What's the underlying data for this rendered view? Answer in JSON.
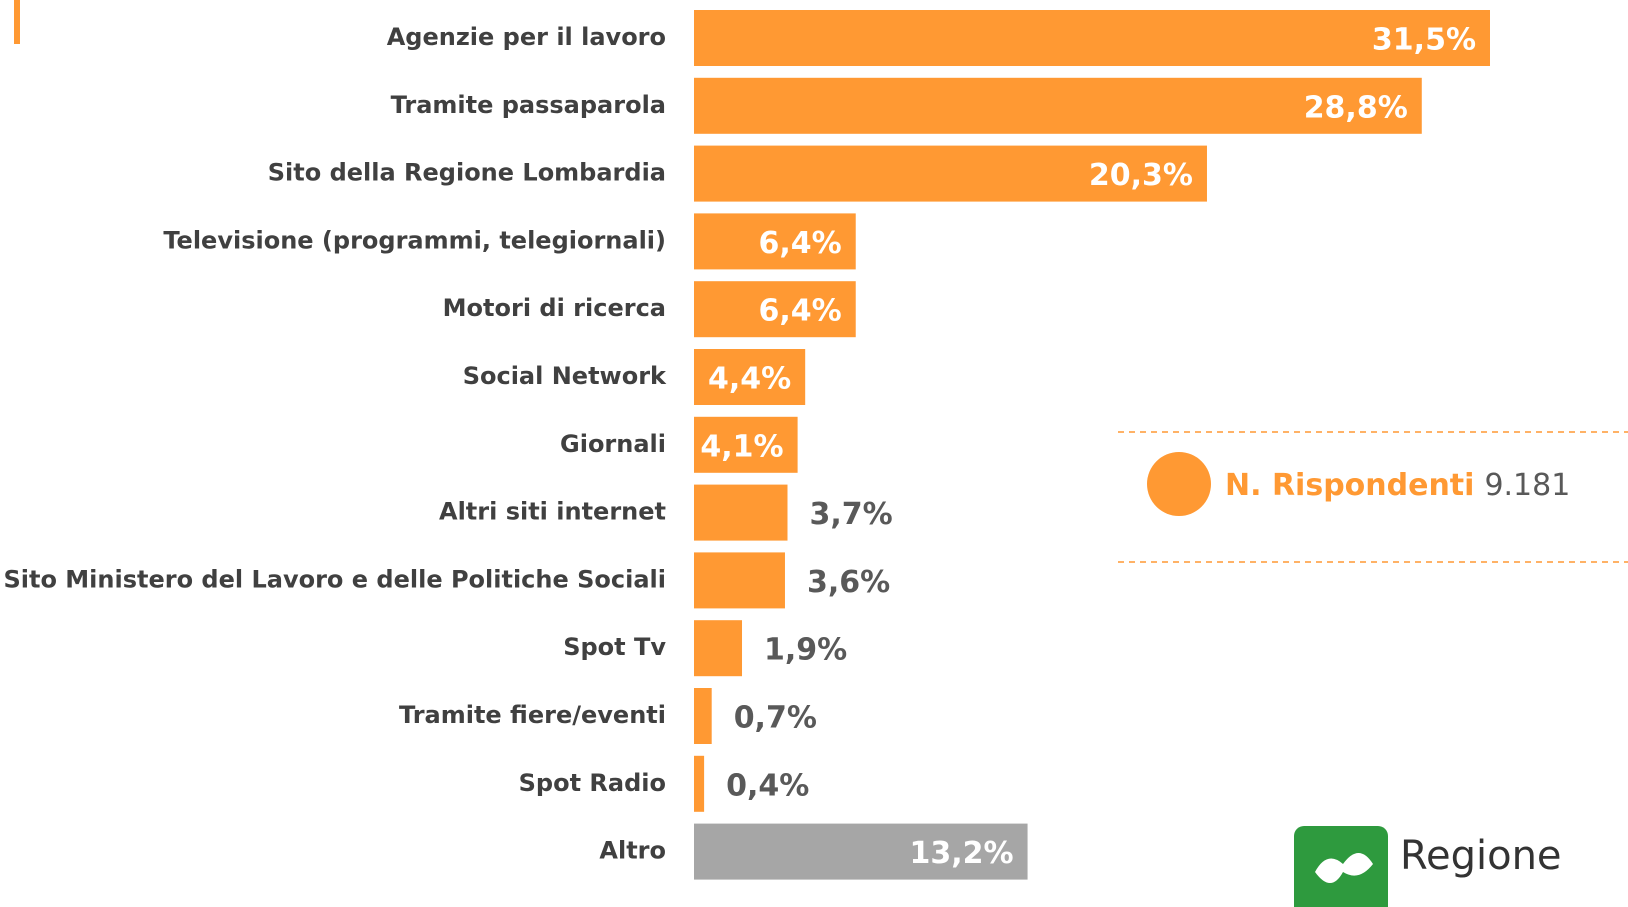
{
  "chart_data": {
    "type": "bar",
    "orientation": "horizontal",
    "categories": [
      "Agenzie per il lavoro",
      "Tramite passaparola",
      "Sito della Regione Lombardia",
      "Televisione (programmi, telegiornali)",
      "Motori di ricerca",
      "Social Network",
      "Giornali",
      "Altri siti internet",
      "Sito Ministero del Lavoro e delle Politiche Sociali",
      "Spot Tv",
      "Tramite fiere/eventi",
      "Spot Radio",
      "Altro"
    ],
    "values": [
      31.5,
      28.8,
      20.3,
      6.4,
      6.4,
      4.4,
      4.1,
      3.7,
      3.6,
      1.9,
      0.7,
      0.4,
      13.2
    ],
    "value_labels": [
      "31,5%",
      "28,8%",
      "20,3%",
      "6,4%",
      "6,4%",
      "4,4%",
      "4,1%",
      "3,7%",
      "3,6%",
      "1,9%",
      "0,7%",
      "0,4%",
      "13,2%"
    ],
    "colors": [
      "#FF9933",
      "#FF9933",
      "#FF9933",
      "#FF9933",
      "#FF9933",
      "#FF9933",
      "#FF9933",
      "#FF9933",
      "#FF9933",
      "#FF9933",
      "#FF9933",
      "#FF9933",
      "#A6A6A6"
    ],
    "annotation": {
      "label": "N. Rispondenti",
      "value": "9.181"
    },
    "logo": "Regione"
  }
}
